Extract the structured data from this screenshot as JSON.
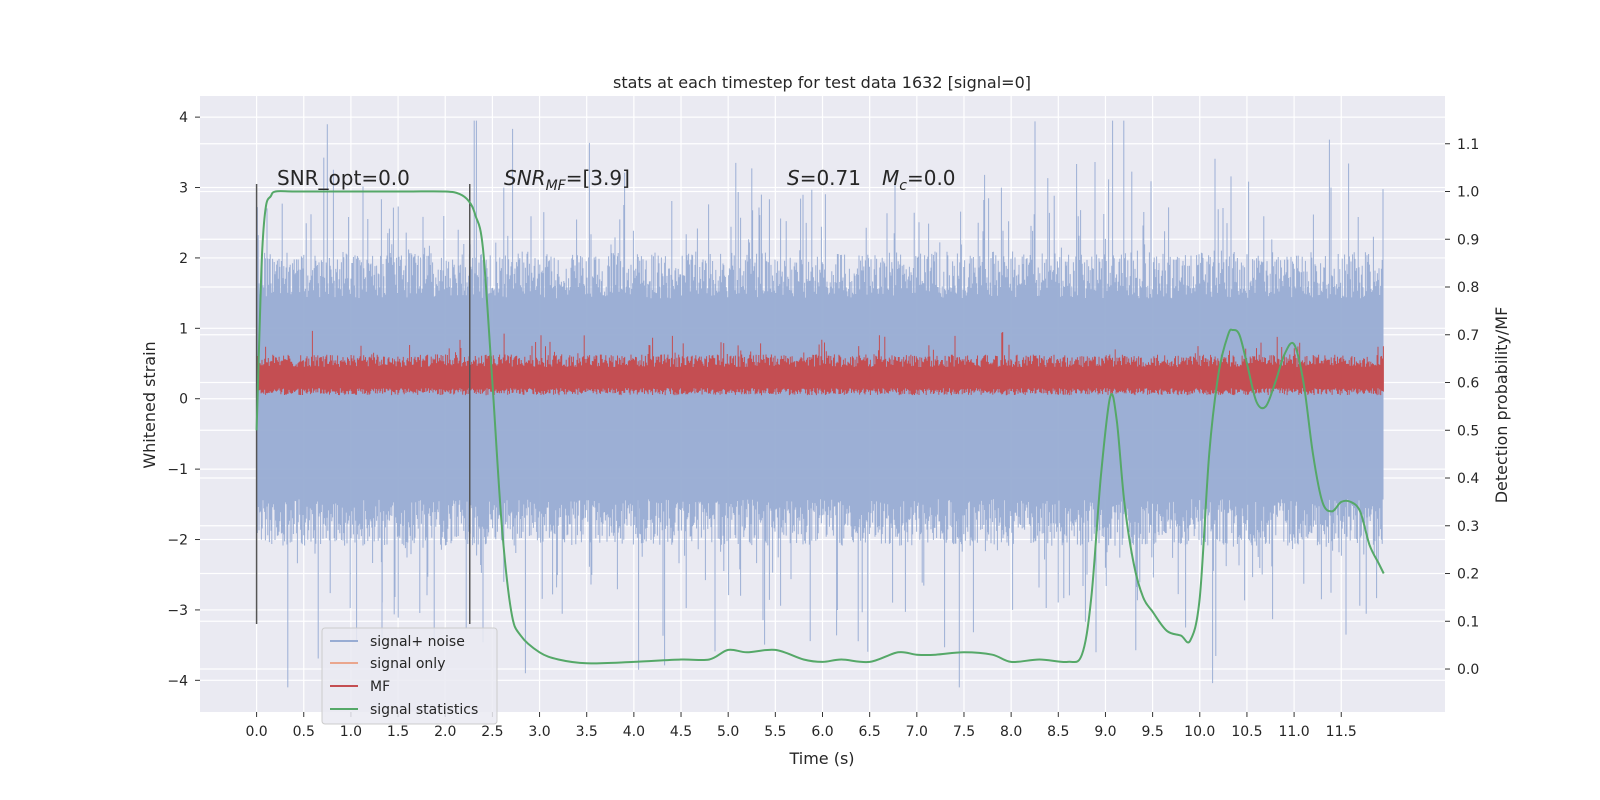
{
  "chart_data": {
    "type": "line",
    "title": "stats at each timestep for test data 1632 [signal=0]",
    "xlabel": "Time (s)",
    "ylabel_left": "Whitened strain",
    "ylabel_right": "Detection probability/MF",
    "xlim": [
      -0.6,
      12.6
    ],
    "ylim_left": [
      -4.45,
      4.3
    ],
    "ylim_right": [
      -0.09,
      1.2
    ],
    "x_ticks": [
      "0.0",
      "0.5",
      "1.0",
      "1.5",
      "2.0",
      "2.5",
      "3.0",
      "3.5",
      "4.0",
      "4.5",
      "5.0",
      "5.5",
      "6.0",
      "6.5",
      "7.0",
      "7.5",
      "8.0",
      "8.5",
      "9.0",
      "9.5",
      "10.0",
      "10.5",
      "11.0",
      "11.5"
    ],
    "y_ticks_left": [
      "−4",
      "−3",
      "−2",
      "−1",
      "0",
      "1",
      "2",
      "3",
      "4"
    ],
    "y_ticks_right": [
      "0.0",
      "0.1",
      "0.2",
      "0.3",
      "0.4",
      "0.5",
      "0.6",
      "0.7",
      "0.8",
      "0.9",
      "1.0",
      "1.1"
    ],
    "grid": true,
    "background": "#eaeaf2",
    "annotations": {
      "snr_opt": "SNR_opt=0.0",
      "snr_mf_sym": "SNR",
      "snr_mf_sub": "MF",
      "snr_mf_rest": "=[3.9]",
      "s_sym": "S",
      "s_rest": "=0.71",
      "mc_sym": "M",
      "mc_sub": "c",
      "mc_rest": "=0.0"
    },
    "window_markers": {
      "x": [
        0.0,
        2.26
      ],
      "y_range": [
        -3.2,
        3.05
      ]
    },
    "series": [
      {
        "name": "signal+ noise",
        "axis": "left",
        "color": "#98acd3",
        "style": "dense noise band",
        "x_range": [
          0.0,
          11.95
        ],
        "typical_range": [
          -1.9,
          1.9
        ],
        "extremes": [
          -4.1,
          3.95
        ]
      },
      {
        "name": "signal only",
        "axis": "left",
        "color": "#eaa68e",
        "style": "flat at zero (hidden)",
        "values": []
      },
      {
        "name": "MF",
        "axis": "left",
        "color": "#c44e52",
        "style": "dense band",
        "x_range": [
          0.0,
          11.95
        ],
        "typical_range": [
          0.05,
          0.6
        ],
        "extremes": [
          0.0,
          1.0
        ]
      },
      {
        "name": "signal statistics",
        "axis": "right",
        "color": "#55a868",
        "x": [
          0.0,
          0.03,
          0.06,
          0.1,
          0.15,
          0.2,
          0.4,
          0.8,
          1.2,
          1.6,
          2.0,
          2.15,
          2.25,
          2.32,
          2.4,
          2.5,
          2.6,
          2.7,
          2.8,
          3.0,
          3.2,
          3.5,
          4.0,
          4.5,
          4.8,
          5.0,
          5.2,
          5.5,
          5.8,
          6.0,
          6.2,
          6.5,
          6.8,
          7.0,
          7.2,
          7.5,
          7.8,
          8.0,
          8.3,
          8.6,
          8.75,
          8.85,
          8.95,
          9.05,
          9.12,
          9.2,
          9.3,
          9.4,
          9.5,
          9.65,
          9.8,
          9.9,
          10.0,
          10.1,
          10.2,
          10.3,
          10.35,
          10.42,
          10.5,
          10.6,
          10.7,
          10.8,
          10.9,
          11.0,
          11.1,
          11.2,
          11.3,
          11.4,
          11.5,
          11.6,
          11.7,
          11.8,
          11.9,
          11.95
        ],
        "values": [
          0.5,
          0.7,
          0.88,
          0.97,
          0.99,
          1.0,
          1.0,
          1.0,
          1.0,
          1.0,
          1.0,
          0.995,
          0.98,
          0.95,
          0.88,
          0.6,
          0.3,
          0.12,
          0.07,
          0.035,
          0.02,
          0.012,
          0.015,
          0.02,
          0.02,
          0.04,
          0.035,
          0.04,
          0.02,
          0.015,
          0.02,
          0.015,
          0.035,
          0.03,
          0.03,
          0.035,
          0.03,
          0.015,
          0.02,
          0.015,
          0.03,
          0.15,
          0.4,
          0.57,
          0.52,
          0.35,
          0.22,
          0.15,
          0.12,
          0.08,
          0.07,
          0.06,
          0.15,
          0.45,
          0.62,
          0.7,
          0.71,
          0.7,
          0.64,
          0.56,
          0.55,
          0.6,
          0.66,
          0.68,
          0.6,
          0.45,
          0.35,
          0.33,
          0.35,
          0.35,
          0.33,
          0.26,
          0.22,
          0.2
        ]
      }
    ]
  }
}
